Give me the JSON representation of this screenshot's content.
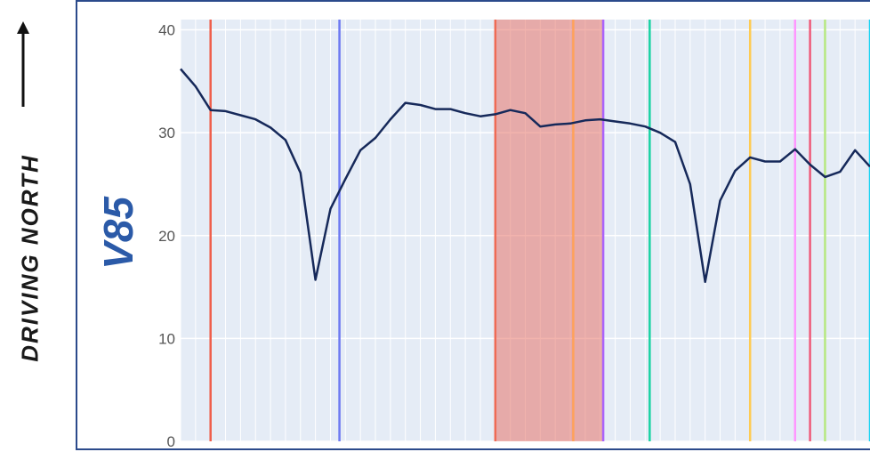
{
  "side_label": "DRIVING NORTH",
  "chart_data": {
    "type": "line",
    "title": "",
    "ylabel": "V85",
    "xlabel": "",
    "ylim": [
      0,
      41
    ],
    "xlim": [
      0,
      46
    ],
    "yticks": [
      0,
      10,
      20,
      30,
      40
    ],
    "grid": true,
    "series": [
      {
        "color": "#16295a",
        "x": [
          0,
          1,
          2,
          3,
          4,
          5,
          6,
          7,
          8,
          9,
          10,
          11,
          12,
          13,
          14,
          15,
          16,
          17,
          18,
          19,
          20,
          21,
          22,
          23,
          24,
          25,
          26,
          27,
          28,
          29,
          30,
          31,
          32,
          33,
          34,
          35,
          36,
          37,
          38,
          39,
          40,
          41,
          42,
          43,
          44,
          45,
          46
        ],
        "y": [
          36.2,
          34.5,
          32.2,
          32.1,
          31.7,
          31.3,
          30.5,
          29.3,
          26.1,
          15.7,
          22.6,
          25.5,
          28.3,
          29.5,
          31.3,
          32.9,
          32.7,
          32.3,
          32.3,
          31.9,
          31.6,
          31.8,
          32.2,
          31.9,
          30.6,
          30.8,
          30.9,
          31.2,
          31.3,
          31.1,
          30.9,
          30.6,
          30.0,
          29.1,
          25.0,
          15.5,
          23.4,
          26.3,
          27.6,
          27.2,
          27.2,
          28.4,
          26.9,
          25.7,
          26.2,
          28.3,
          26.7
        ]
      }
    ],
    "highlight_band": {
      "x0": 21.0,
      "x1": 28.2,
      "color": "#e8746a"
    },
    "vlines": [
      {
        "x": 2.0,
        "color": "#ef5e4b"
      },
      {
        "x": 10.6,
        "color": "#6d79f2"
      },
      {
        "x": 21.0,
        "color": "#ef6b55"
      },
      {
        "x": 26.2,
        "color": "#ffa15a"
      },
      {
        "x": 28.2,
        "color": "#ab63fa"
      },
      {
        "x": 31.3,
        "color": "#19d3a2"
      },
      {
        "x": 38.0,
        "color": "#fecb52"
      },
      {
        "x": 41.0,
        "color": "#ff97ff"
      },
      {
        "x": 42.0,
        "color": "#ef5b7a"
      },
      {
        "x": 43.0,
        "color": "#b6e880"
      },
      {
        "x": 46.0,
        "color": "#19d3f3"
      }
    ]
  }
}
